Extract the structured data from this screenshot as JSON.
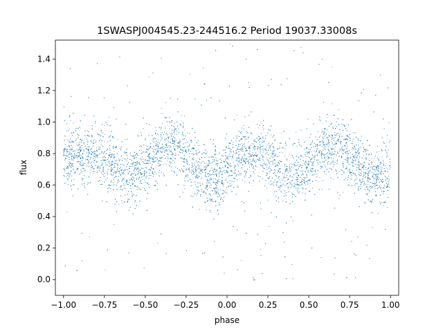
{
  "chart_data": {
    "type": "scatter",
    "title": "1SWASPJ004545.23-244516.2 Period 19037.33008s",
    "xlabel": "phase",
    "ylabel": "flux",
    "xlim": [
      -1.05,
      1.05
    ],
    "ylim": [
      -0.1,
      1.52
    ],
    "xticks": [
      -1.0,
      -0.75,
      -0.5,
      -0.25,
      0.0,
      0.25,
      0.5,
      0.75,
      1.0
    ],
    "xtick_labels": [
      "−1.00",
      "−0.75",
      "−0.50",
      "−0.25",
      "0.00",
      "0.25",
      "0.50",
      "0.75",
      "1.00"
    ],
    "yticks": [
      0.0,
      0.2,
      0.4,
      0.6,
      0.8,
      1.0,
      1.2,
      1.4
    ],
    "ytick_labels": [
      "0.0",
      "0.2",
      "0.4",
      "0.6",
      "0.8",
      "1.0",
      "1.2",
      "1.4"
    ],
    "grid": false,
    "marker_color": "#1f77b4",
    "x_range": [
      -1.0,
      1.0
    ],
    "trend": [
      {
        "phase": -1.0,
        "flux": 0.74
      },
      {
        "phase": -0.9,
        "flux": 0.8
      },
      {
        "phase": -0.8,
        "flux": 0.81
      },
      {
        "phase": -0.7,
        "flux": 0.72
      },
      {
        "phase": -0.6,
        "flux": 0.64
      },
      {
        "phase": -0.5,
        "flux": 0.72
      },
      {
        "phase": -0.4,
        "flux": 0.83
      },
      {
        "phase": -0.33,
        "flux": 0.86
      },
      {
        "phase": -0.25,
        "flux": 0.78
      },
      {
        "phase": -0.15,
        "flux": 0.67
      },
      {
        "phase": -0.05,
        "flux": 0.64
      },
      {
        "phase": 0.0,
        "flux": 0.72
      },
      {
        "phase": 0.1,
        "flux": 0.8
      },
      {
        "phase": 0.2,
        "flux": 0.81
      },
      {
        "phase": 0.3,
        "flux": 0.72
      },
      {
        "phase": 0.4,
        "flux": 0.64
      },
      {
        "phase": 0.5,
        "flux": 0.72
      },
      {
        "phase": 0.6,
        "flux": 0.83
      },
      {
        "phase": 0.67,
        "flux": 0.86
      },
      {
        "phase": 0.75,
        "flux": 0.78
      },
      {
        "phase": 0.85,
        "flux": 0.67
      },
      {
        "phase": 0.95,
        "flux": 0.64
      },
      {
        "phase": 1.0,
        "flux": 0.7
      }
    ],
    "point_count": 9000,
    "scatter_sd": 0.095,
    "outlier_fraction": 0.05,
    "outlier_range": [
      -0.02,
      1.5
    ]
  }
}
